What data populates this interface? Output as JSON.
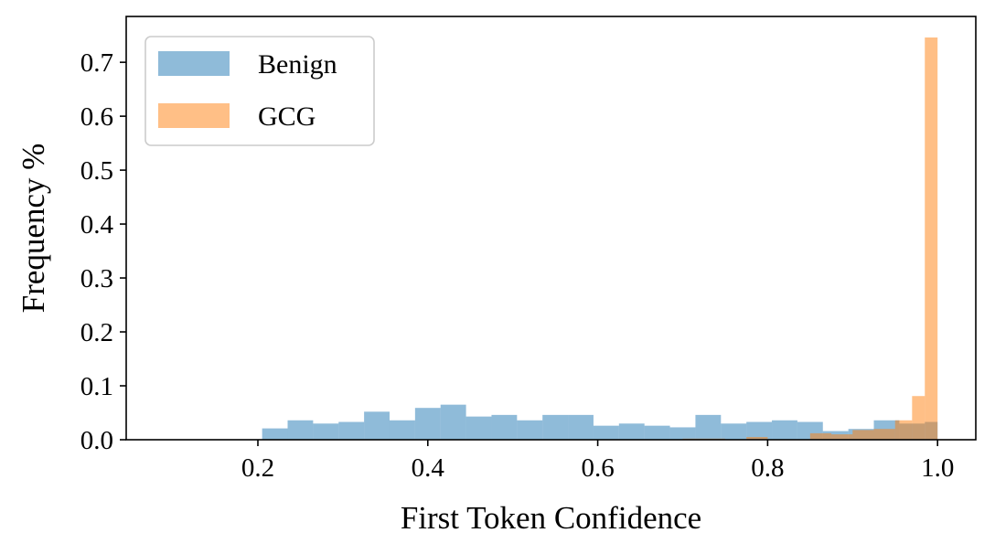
{
  "chart_data": {
    "type": "histogram",
    "xlabel": "First Token Confidence",
    "ylabel": "Frequency %",
    "xlim": [
      0.045,
      1.045
    ],
    "ylim": [
      0,
      0.785
    ],
    "xticks": [
      {
        "value": 0.2,
        "label": "0.2"
      },
      {
        "value": 0.4,
        "label": "0.4"
      },
      {
        "value": 0.6,
        "label": "0.6"
      },
      {
        "value": 0.8,
        "label": "0.8"
      },
      {
        "value": 1.0,
        "label": "1.0"
      }
    ],
    "yticks": [
      {
        "value": 0.0,
        "label": "0.0"
      },
      {
        "value": 0.1,
        "label": "0.1"
      },
      {
        "value": 0.2,
        "label": "0.2"
      },
      {
        "value": 0.3,
        "label": "0.3"
      },
      {
        "value": 0.4,
        "label": "0.4"
      },
      {
        "value": 0.5,
        "label": "0.5"
      },
      {
        "value": 0.6,
        "label": "0.6"
      },
      {
        "value": 0.7,
        "label": "0.7"
      }
    ],
    "grid": false,
    "legend_position": "top-left",
    "series": [
      {
        "name": "Benign",
        "color": "#1f77b4",
        "opacity": 0.5,
        "bins": [
          {
            "x0": 0.205,
            "x1": 0.235,
            "y": 0.021
          },
          {
            "x0": 0.235,
            "x1": 0.265,
            "y": 0.036
          },
          {
            "x0": 0.265,
            "x1": 0.295,
            "y": 0.03
          },
          {
            "x0": 0.295,
            "x1": 0.325,
            "y": 0.033
          },
          {
            "x0": 0.325,
            "x1": 0.355,
            "y": 0.052
          },
          {
            "x0": 0.355,
            "x1": 0.385,
            "y": 0.036
          },
          {
            "x0": 0.385,
            "x1": 0.415,
            "y": 0.059
          },
          {
            "x0": 0.415,
            "x1": 0.445,
            "y": 0.065
          },
          {
            "x0": 0.445,
            "x1": 0.475,
            "y": 0.043
          },
          {
            "x0": 0.475,
            "x1": 0.505,
            "y": 0.046
          },
          {
            "x0": 0.505,
            "x1": 0.535,
            "y": 0.036
          },
          {
            "x0": 0.535,
            "x1": 0.565,
            "y": 0.046
          },
          {
            "x0": 0.565,
            "x1": 0.595,
            "y": 0.046
          },
          {
            "x0": 0.595,
            "x1": 0.625,
            "y": 0.026
          },
          {
            "x0": 0.625,
            "x1": 0.655,
            "y": 0.03
          },
          {
            "x0": 0.655,
            "x1": 0.685,
            "y": 0.026
          },
          {
            "x0": 0.685,
            "x1": 0.715,
            "y": 0.023
          },
          {
            "x0": 0.715,
            "x1": 0.745,
            "y": 0.046
          },
          {
            "x0": 0.745,
            "x1": 0.775,
            "y": 0.03
          },
          {
            "x0": 0.775,
            "x1": 0.805,
            "y": 0.033
          },
          {
            "x0": 0.805,
            "x1": 0.835,
            "y": 0.036
          },
          {
            "x0": 0.835,
            "x1": 0.865,
            "y": 0.033
          },
          {
            "x0": 0.865,
            "x1": 0.895,
            "y": 0.016
          },
          {
            "x0": 0.895,
            "x1": 0.925,
            "y": 0.02
          },
          {
            "x0": 0.925,
            "x1": 0.955,
            "y": 0.036
          },
          {
            "x0": 0.955,
            "x1": 0.985,
            "y": 0.03
          },
          {
            "x0": 0.985,
            "x1": 1.0,
            "y": 0.033
          }
        ]
      },
      {
        "name": "GCG",
        "color": "#ff7f0e",
        "opacity": 0.5,
        "bins": [
          {
            "x0": 0.7,
            "x1": 0.75,
            "y": 0.002
          },
          {
            "x0": 0.775,
            "x1": 0.8,
            "y": 0.005
          },
          {
            "x0": 0.85,
            "x1": 0.875,
            "y": 0.012
          },
          {
            "x0": 0.875,
            "x1": 0.9,
            "y": 0.01
          },
          {
            "x0": 0.9,
            "x1": 0.925,
            "y": 0.018
          },
          {
            "x0": 0.925,
            "x1": 0.95,
            "y": 0.02
          },
          {
            "x0": 0.95,
            "x1": 0.97,
            "y": 0.036
          },
          {
            "x0": 0.97,
            "x1": 0.985,
            "y": 0.081
          },
          {
            "x0": 0.985,
            "x1": 1.0,
            "y": 0.746
          }
        ]
      }
    ]
  }
}
